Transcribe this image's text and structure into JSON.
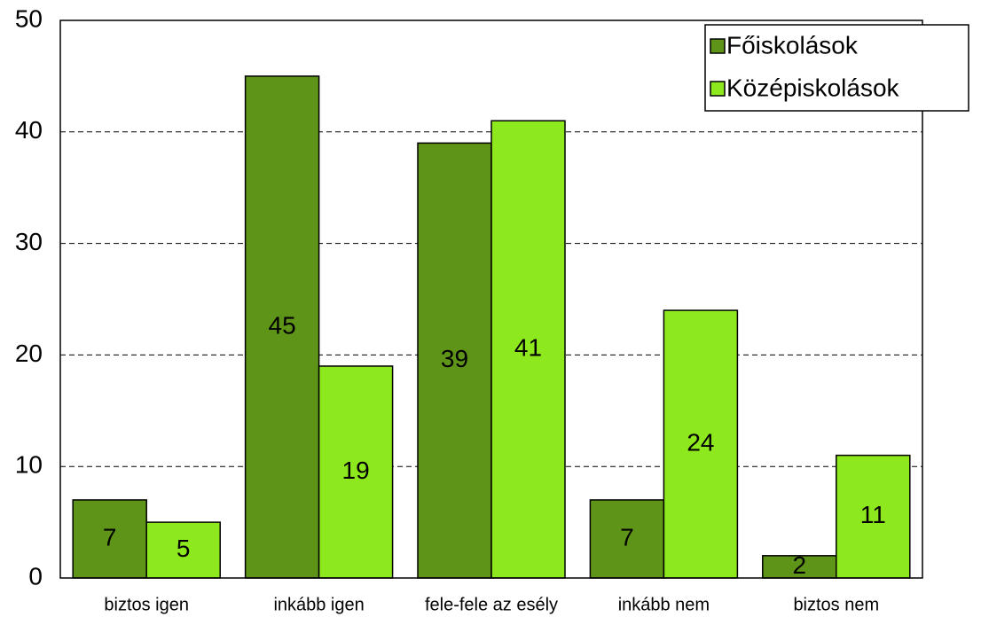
{
  "chart_data": {
    "type": "bar",
    "categories": [
      "biztos igen",
      "inkább igen",
      "fele-fele az esély",
      "inkább nem",
      "biztos nem"
    ],
    "series": [
      {
        "name": "Főiskolások",
        "color": "#5e9418",
        "values": [
          7,
          45,
          39,
          7,
          2
        ]
      },
      {
        "name": "Középiskolások",
        "color": "#8ee81e",
        "values": [
          5,
          19,
          41,
          24,
          11
        ]
      }
    ],
    "ylim": [
      0,
      50
    ],
    "yticks": [
      0,
      10,
      20,
      30,
      40,
      50
    ],
    "grid": true,
    "legend": "top-right"
  }
}
